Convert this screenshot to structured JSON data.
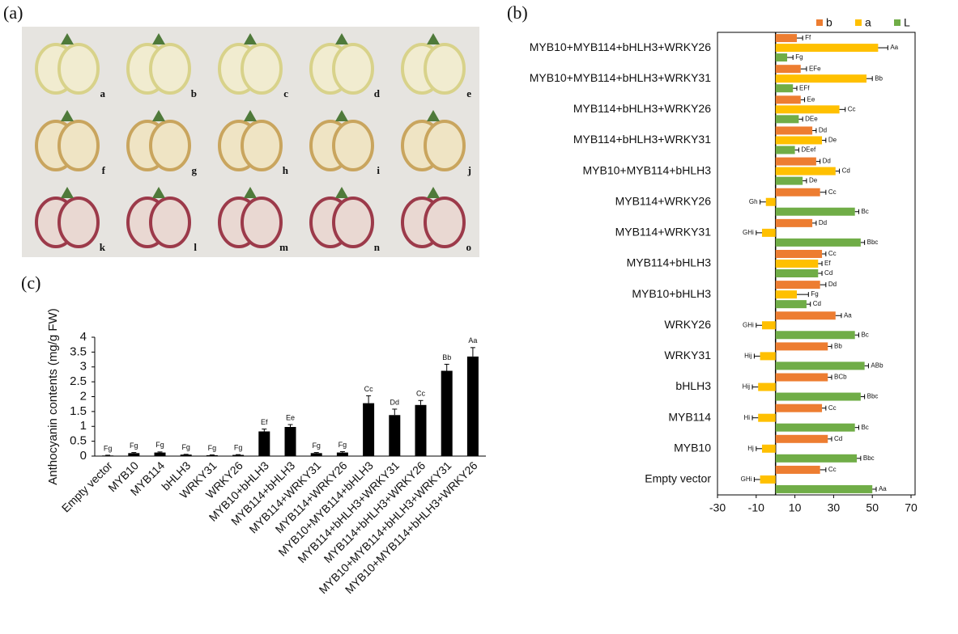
{
  "panel_labels": [
    "(a)",
    "(b)",
    "(c)"
  ],
  "photos": {
    "labels": [
      "a",
      "b",
      "c",
      "d",
      "e",
      "f",
      "g",
      "h",
      "i",
      "j",
      "k",
      "l",
      "m",
      "n",
      "o"
    ]
  },
  "chart_data": [
    {
      "type": "bar",
      "ylabel": "Anthocyanin contents (mg/g FW)",
      "categories": [
        "Empty vector",
        "MYB10",
        "MYB114",
        "bHLH3",
        "WRKY31",
        "WRKY26",
        "MYB10+bHLH3",
        "MYB114+bHLH3",
        "MYB114+WRKY31",
        "MYB114+WRKY26",
        "MYB10+MYB114+bHLH3",
        "MYB114+bHLH3+WRKY31",
        "MYB114+bHLH3+WRKY26",
        "MYB10+MYB114+bHLH3+WRKY31",
        "MYB10+MYB114+bHLH3+WRKY26"
      ],
      "values": [
        0.02,
        0.1,
        0.12,
        0.05,
        0.03,
        0.04,
        0.83,
        0.98,
        0.1,
        0.12,
        1.78,
        1.38,
        1.72,
        2.87,
        3.35
      ],
      "errors": [
        0.01,
        0.02,
        0.02,
        0.01,
        0.01,
        0.01,
        0.08,
        0.08,
        0.02,
        0.03,
        0.25,
        0.2,
        0.15,
        0.22,
        0.3
      ],
      "labels": [
        "Fg",
        "Fg",
        "Fg",
        "Fg",
        "Fg",
        "Fg",
        "Ef",
        "Ee",
        "Fg",
        "Fg",
        "Cc",
        "Dd",
        "Cc",
        "Bb",
        "Aa"
      ],
      "color": "#000000",
      "ylim": [
        0,
        4
      ],
      "yticks": [
        0,
        0.5,
        1,
        1.5,
        2,
        2.5,
        3,
        3.5,
        4
      ],
      "grid": false
    },
    {
      "type": "hbar",
      "legend": "top-right",
      "categories": [
        "MYB10+MYB114+bHLH3+WRKY26",
        "MYB10+MYB114+bHLH3+WRKY31",
        "MYB114+bHLH3+WRKY26",
        "MYB114+bHLH3+WRKY31",
        "MYB10+MYB114+bHLH3",
        "MYB114+WRKY26",
        "MYB114+WRKY31",
        "MYB114+bHLH3",
        "MYB10+bHLH3",
        "WRKY26",
        "WRKY31",
        "bHLH3",
        "MYB114",
        "MYB10",
        "Empty vector"
      ],
      "series": [
        {
          "name": "b",
          "color": "#ed7d31",
          "values": [
            11,
            13,
            13,
            19,
            21,
            23,
            19,
            24,
            23,
            31,
            27,
            27,
            24,
            27,
            23
          ],
          "errors": [
            3,
            3,
            2,
            2,
            2,
            3,
            2,
            2,
            3,
            3,
            2,
            2,
            2,
            2,
            3
          ],
          "labels": [
            "Ff",
            "EFe",
            "Ee",
            "Dd",
            "Dd",
            "Cc",
            "Dd",
            "Cc",
            "Dd",
            "Aa",
            "Bb",
            "BCb",
            "Cc",
            "Cd",
            "Cc"
          ]
        },
        {
          "name": "a",
          "color": "#ffc000",
          "values": [
            53,
            47,
            33,
            24,
            31,
            -5,
            -7,
            22,
            11,
            -7,
            -8,
            -9,
            -9,
            -7,
            -8
          ],
          "errors": [
            5,
            3,
            3,
            2,
            2,
            3,
            3,
            2,
            6,
            3,
            3,
            3,
            3,
            3,
            3
          ],
          "labels": [
            "Aa",
            "Bb",
            "Cc",
            "De",
            "Cd",
            "Gh",
            "GHi",
            "Ef",
            "Fg",
            "GHi",
            "Hij",
            "Hij",
            "Hi",
            "Hj",
            "GHi"
          ]
        },
        {
          "name": "L",
          "color": "#70ad47",
          "values": [
            6,
            9,
            12,
            10,
            14,
            41,
            44,
            22,
            16,
            41,
            46,
            44,
            41,
            42,
            50
          ],
          "errors": [
            3,
            2,
            2,
            2,
            2,
            2,
            2,
            2,
            2,
            2,
            2,
            2,
            2,
            2,
            2
          ],
          "labels": [
            "Fg",
            "EFf",
            "DEe",
            "DEef",
            "De",
            "Bc",
            "Bbc",
            "Cd",
            "Cd",
            "Bc",
            "ABb",
            "Bbc",
            "Bc",
            "Bbc",
            "Aa"
          ]
        }
      ],
      "xlim": [
        -30,
        70
      ],
      "xticks": [
        -30,
        -10,
        10,
        30,
        50,
        70
      ],
      "grid": false
    }
  ]
}
